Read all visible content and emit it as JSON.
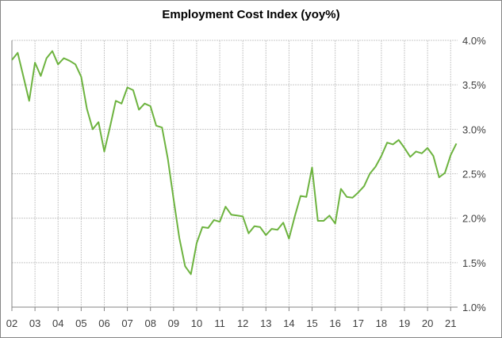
{
  "chart_data": {
    "type": "line",
    "title": "Employment Cost Index (yoy%)",
    "xlabel": "",
    "ylabel": "",
    "frequency": "quarterly",
    "start": "2002Q1",
    "end": "2021Q2",
    "x_tick_labels": [
      "02",
      "03",
      "04",
      "05",
      "06",
      "07",
      "08",
      "09",
      "10",
      "11",
      "12",
      "13",
      "14",
      "15",
      "16",
      "17",
      "18",
      "19",
      "20",
      "21"
    ],
    "y_tick_labels": [
      "1.0%",
      "1.5%",
      "2.0%",
      "2.5%",
      "3.0%",
      "3.5%",
      "4.0%"
    ],
    "y_ticks": [
      1.0,
      1.5,
      2.0,
      2.5,
      3.0,
      3.5,
      4.0
    ],
    "ylim": [
      1.0,
      4.0
    ],
    "xlim": [
      2002,
      2021.3
    ],
    "y_axis_side": "right",
    "grid": {
      "vertical": "dashed",
      "horizontal": "dashed"
    },
    "legend": "none",
    "series": [
      {
        "color": "#6DB33F",
        "values": [
          3.78,
          3.86,
          3.59,
          3.32,
          3.75,
          3.6,
          3.8,
          3.88,
          3.73,
          3.8,
          3.77,
          3.73,
          3.59,
          3.23,
          3.0,
          3.08,
          2.75,
          3.03,
          3.32,
          3.29,
          3.47,
          3.44,
          3.22,
          3.29,
          3.26,
          3.04,
          3.02,
          2.67,
          2.22,
          1.78,
          1.46,
          1.37,
          1.72,
          1.9,
          1.89,
          1.98,
          1.96,
          2.13,
          2.04,
          2.03,
          2.02,
          1.83,
          1.91,
          1.9,
          1.81,
          1.88,
          1.87,
          1.95,
          1.77,
          2.02,
          2.25,
          2.24,
          2.57,
          1.97,
          1.97,
          2.03,
          1.94,
          2.33,
          2.24,
          2.23,
          2.29,
          2.36,
          2.5,
          2.58,
          2.7,
          2.85,
          2.83,
          2.88,
          2.79,
          2.69,
          2.75,
          2.73,
          2.79,
          2.7,
          2.46,
          2.51,
          2.71,
          2.84
        ]
      }
    ]
  }
}
